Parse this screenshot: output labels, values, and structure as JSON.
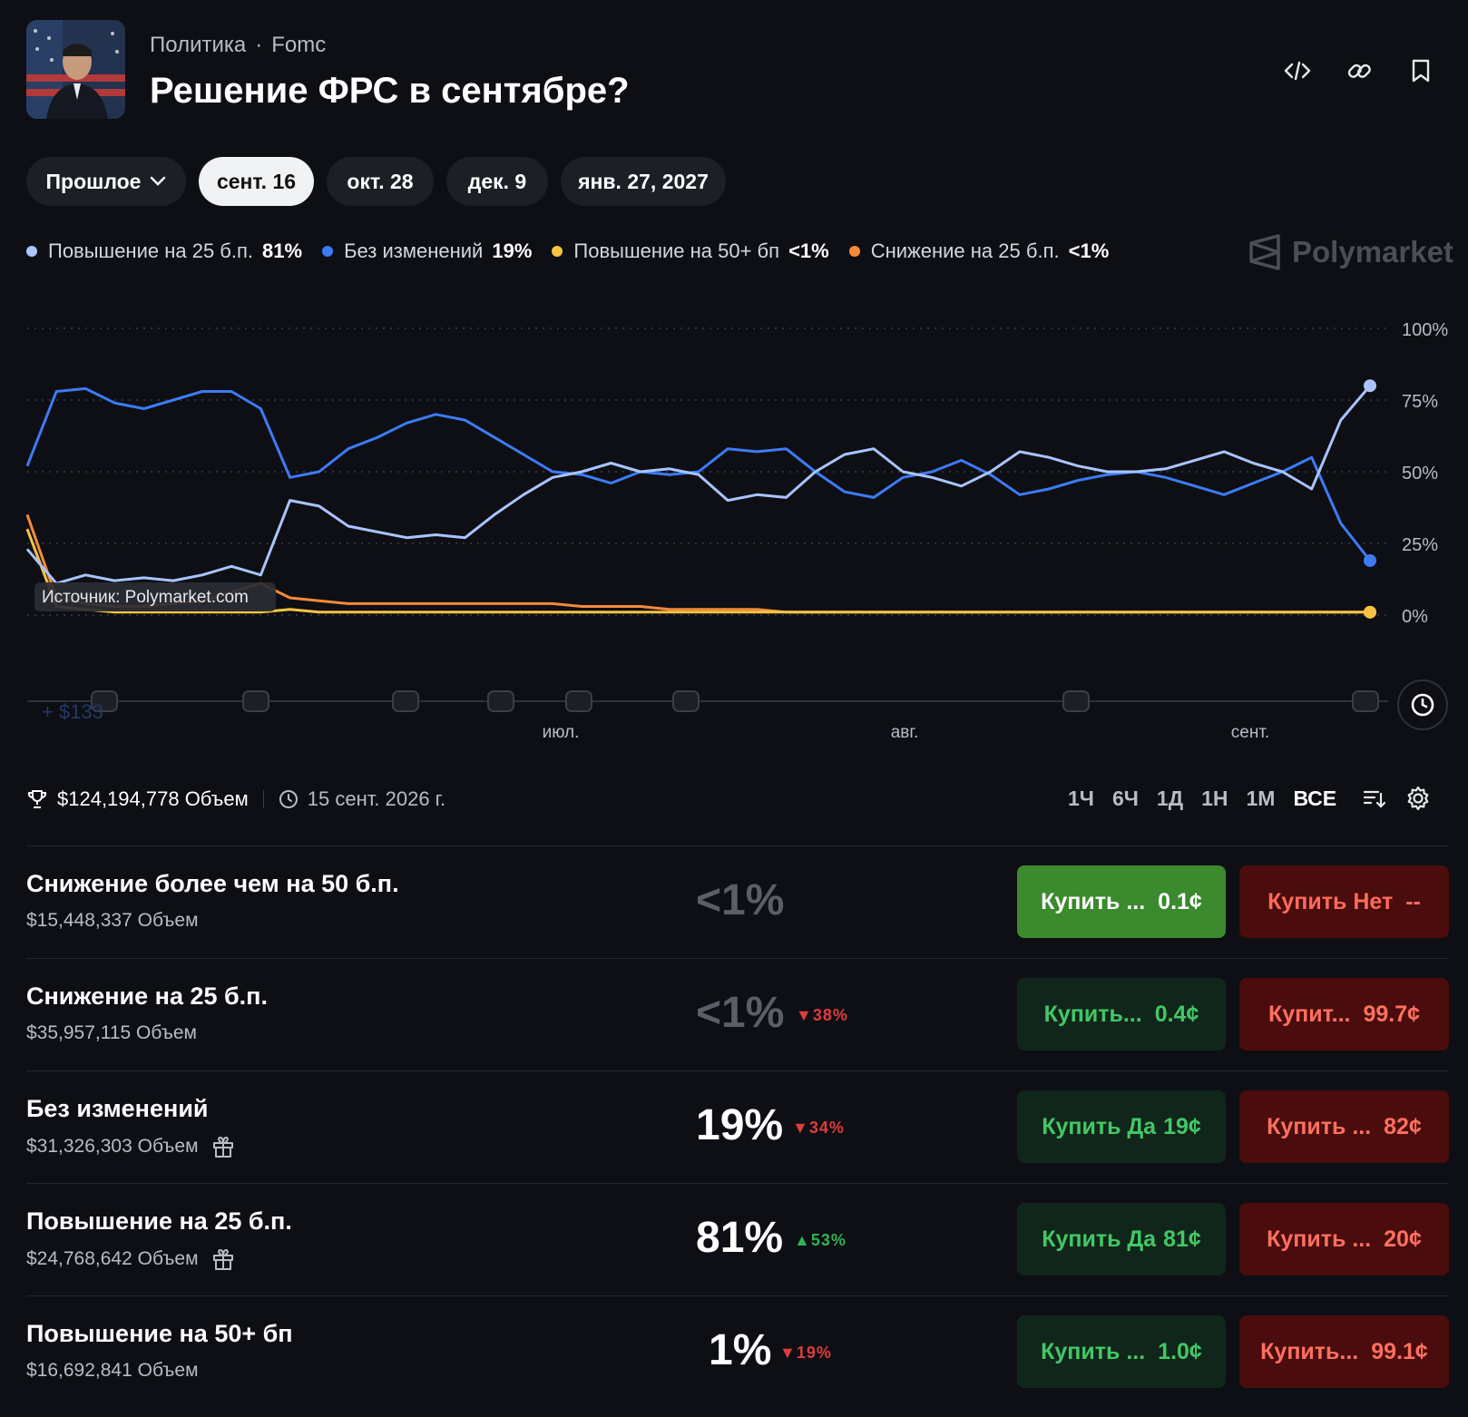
{
  "header": {
    "category": "Политика",
    "dot": "·",
    "subcategory": "Fomc",
    "title": "Решение ФРС в сентябре?"
  },
  "icons": {
    "embed": "code-icon",
    "link": "link-icon",
    "bookmark": "bookmark-icon"
  },
  "date_tabs": [
    {
      "label": "Прошлое",
      "dropdown": true
    },
    {
      "label": "сент. 16",
      "active": true
    },
    {
      "label": "окт. 28"
    },
    {
      "label": "дек. 9"
    },
    {
      "label": "янв. 27, 2027"
    }
  ],
  "legend": [
    {
      "name": "Повышение на 25 б.п.",
      "value": "81%",
      "color": "#a9c4ff"
    },
    {
      "name": "Без изменений",
      "value": "19%",
      "color": "#3d7bf5"
    },
    {
      "name": "Повышение на 50+ бп",
      "value": "<1%",
      "color": "#f6c343"
    },
    {
      "name": "Снижение на 25 б.п.",
      "value": "<1%",
      "color": "#f58a3a"
    }
  ],
  "watermark": "Polymarket",
  "source_label": "Источник: Polymarket.com",
  "trade_marker_label": "+ $133",
  "chart_data": {
    "type": "line",
    "x_labels": [
      "июл.",
      "авг.",
      "сент."
    ],
    "y_ticks": [
      "100%",
      "75%",
      "50%",
      "25%",
      "0%"
    ],
    "ylim": [
      0,
      100
    ],
    "grid": true,
    "series": [
      {
        "name": "Повышение на 25 б.п.",
        "color": "#a9c4ff",
        "values": [
          23,
          11,
          14,
          12,
          13,
          12,
          14,
          17,
          14,
          40,
          38,
          31,
          29,
          27,
          28,
          27,
          35,
          42,
          48,
          50,
          53,
          50,
          51,
          49,
          40,
          42,
          41,
          50,
          56,
          58,
          50,
          48,
          45,
          50,
          57,
          55,
          52,
          50,
          50,
          51,
          54,
          57,
          53,
          50,
          44,
          68,
          80
        ]
      },
      {
        "name": "Без изменений",
        "color": "#3d7bf5",
        "values": [
          52,
          78,
          79,
          74,
          72,
          75,
          78,
          78,
          72,
          48,
          50,
          58,
          62,
          67,
          70,
          68,
          62,
          56,
          50,
          49,
          46,
          50,
          49,
          50,
          58,
          57,
          58,
          50,
          43,
          41,
          48,
          50,
          54,
          49,
          42,
          44,
          47,
          49,
          50,
          48,
          45,
          42,
          46,
          50,
          55,
          32,
          19
        ]
      },
      {
        "name": "Повышение на 50+ бп",
        "color": "#f6c343",
        "values": [
          30,
          3,
          2,
          1,
          1,
          1,
          1,
          1,
          1,
          2,
          1,
          1,
          1,
          1,
          1,
          1,
          1,
          1,
          1,
          1,
          1,
          1,
          1,
          1,
          1,
          1,
          1,
          1,
          1,
          1,
          1,
          1,
          1,
          1,
          1,
          1,
          1,
          1,
          1,
          1,
          1,
          1,
          1,
          1,
          1,
          1,
          1
        ]
      },
      {
        "name": "Снижение на 25 б.п.",
        "color": "#f58a3a",
        "values": [
          35,
          6,
          4,
          3,
          3,
          4,
          5,
          8,
          11,
          6,
          5,
          4,
          4,
          4,
          4,
          4,
          4,
          4,
          4,
          3,
          3,
          3,
          2,
          2,
          2,
          2,
          1,
          1,
          1,
          1,
          1,
          1,
          1,
          1,
          1,
          1,
          1,
          1,
          1,
          1,
          1,
          1,
          1,
          1,
          1,
          1,
          1
        ]
      }
    ]
  },
  "stats": {
    "volume": "$124,194,778 Объем",
    "end_date": "15 сент. 2026 г."
  },
  "ranges": [
    {
      "label": "1Ч"
    },
    {
      "label": "6Ч"
    },
    {
      "label": "1Д"
    },
    {
      "label": "1Н"
    },
    {
      "label": "1М"
    },
    {
      "label": "ВСЕ",
      "active": true
    }
  ],
  "outcomes": [
    {
      "name": "Снижение более чем на 50 б.п.",
      "volume": "$15,448,337 Объем",
      "gift": false,
      "pct": "<1%",
      "dim": true,
      "change": "",
      "dir": "",
      "yes_label": "Купить ...",
      "yes_price": "0.1¢",
      "yes_solid": true,
      "no_label": "Купить Нет",
      "no_price": "--"
    },
    {
      "name": "Снижение на 25 б.п.",
      "volume": "$35,957,115 Объем",
      "gift": false,
      "pct": "<1%",
      "dim": true,
      "change": "38%",
      "dir": "down",
      "yes_label": "Купить...",
      "yes_price": "0.4¢",
      "yes_solid": false,
      "no_label": "Купит...",
      "no_price": "99.7¢"
    },
    {
      "name": "Без изменений",
      "volume": "$31,326,303 Объем",
      "gift": true,
      "pct": "19%",
      "dim": false,
      "change": "34%",
      "dir": "down",
      "yes_label": "Купить Да",
      "yes_price": "19¢",
      "yes_solid": false,
      "no_label": "Купить ...",
      "no_price": "82¢"
    },
    {
      "name": "Повышение на 25 б.п.",
      "volume": "$24,768,642 Объем",
      "gift": true,
      "pct": "81%",
      "dim": false,
      "change": "53%",
      "dir": "up",
      "yes_label": "Купить Да",
      "yes_price": "81¢",
      "yes_solid": false,
      "no_label": "Купить ...",
      "no_price": "20¢"
    },
    {
      "name": "Повышение на 50+ бп",
      "volume": "$16,692,841 Объем",
      "gift": false,
      "pct": "1%",
      "dim": false,
      "change": "19%",
      "dir": "down",
      "yes_label": "Купить ...",
      "yes_price": "1.0¢",
      "yes_solid": false,
      "no_label": "Купить...",
      "no_price": "99.1¢"
    }
  ]
}
